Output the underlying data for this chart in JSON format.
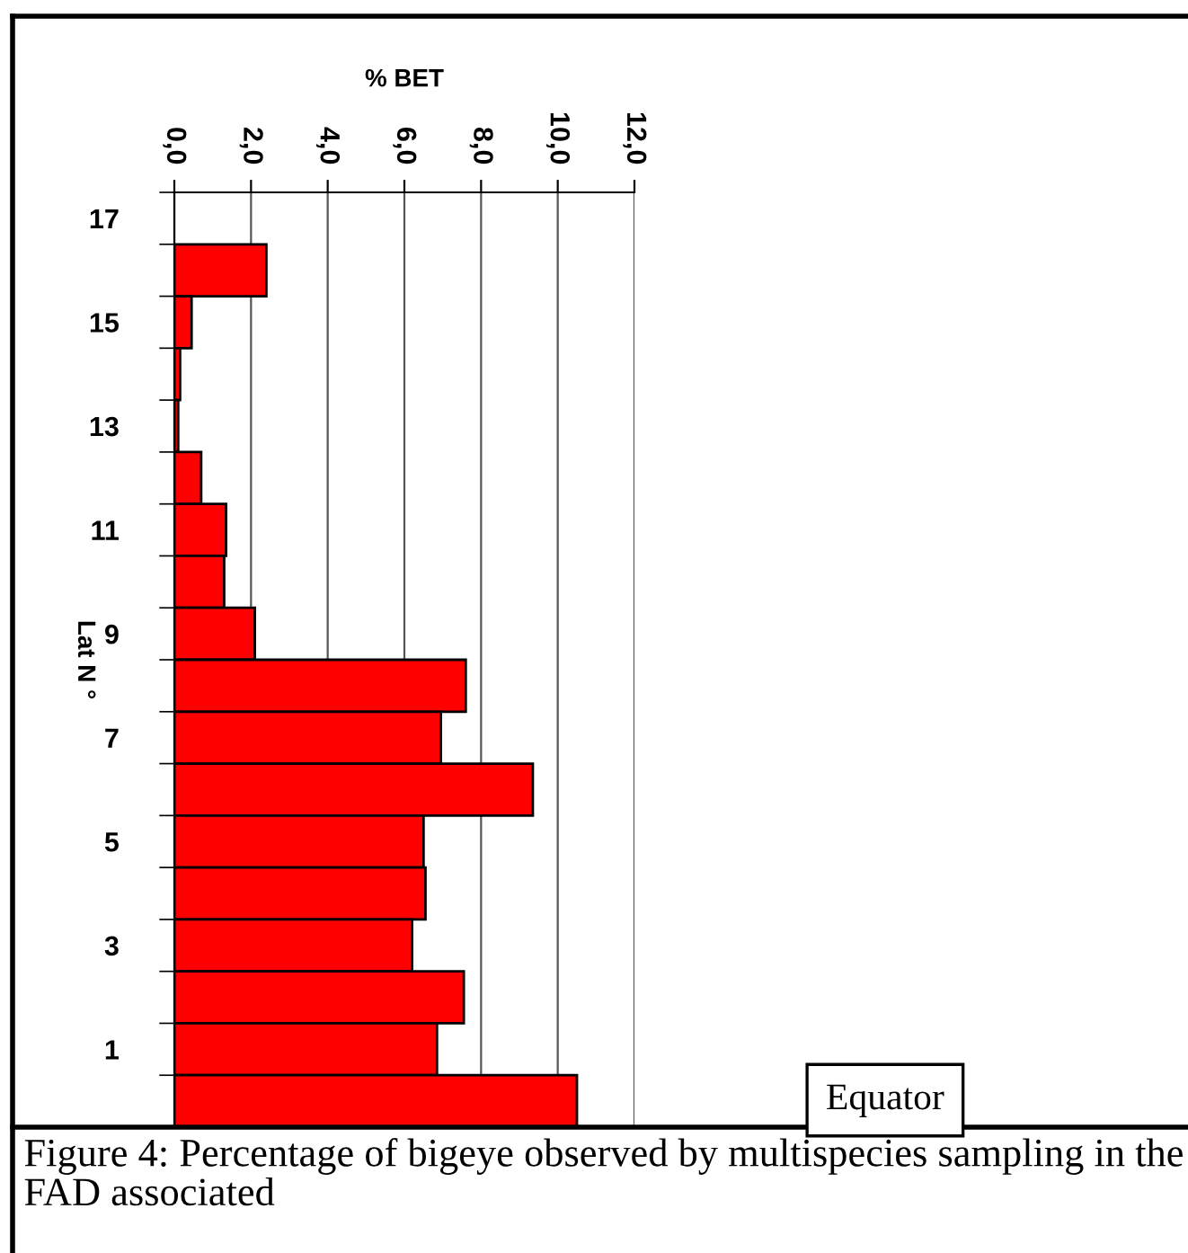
{
  "chart_data": {
    "type": "bar",
    "orientation": "horizontal",
    "xlabel": "% BET",
    "ylabel": "Lat N °",
    "categories": [
      "17",
      null,
      "15",
      null,
      "13",
      null,
      "11",
      null,
      "9",
      null,
      "7",
      null,
      "5",
      null,
      "3",
      null,
      "1",
      null
    ],
    "values": [
      null,
      2.4,
      0.45,
      0.15,
      0.1,
      0.7,
      1.35,
      1.3,
      2.1,
      7.6,
      6.95,
      9.35,
      6.5,
      6.55,
      6.2,
      7.55,
      6.85,
      10.5
    ],
    "color": "#ff0000",
    "xlim": [
      0,
      12
    ],
    "xticks": [
      {
        "value": 0,
        "label": "0,0"
      },
      {
        "value": 2,
        "label": "2,0"
      },
      {
        "value": 4,
        "label": "4,0"
      },
      {
        "value": 6,
        "label": "6,0"
      },
      {
        "value": 8,
        "label": "8,0"
      },
      {
        "value": 10,
        "label": "10,0"
      },
      {
        "value": 12,
        "label": "12,0"
      }
    ],
    "grid": "x",
    "annotations": [
      "Equator",
      "Figure 4: Percentage of bigeye observed by multispecies sampling in the FAD associated"
    ]
  }
}
